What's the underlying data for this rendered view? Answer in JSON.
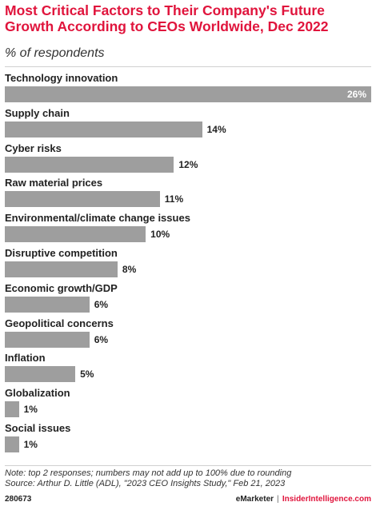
{
  "header": {
    "title": "Most Critical Factors to Their Company's Future Growth According to CEOs Worldwide, Dec 2022",
    "subtitle": "% of respondents"
  },
  "chart_data": {
    "type": "bar",
    "orientation": "horizontal",
    "title": "Most Critical Factors to Their Company's Future Growth According to CEOs Worldwide, Dec 2022",
    "subtitle": "% of respondents",
    "categories": [
      "Technology innovation",
      "Supply chain",
      "Cyber risks",
      "Raw material prices",
      "Environmental/climate change issues",
      "Disruptive competition",
      "Economic growth/GDP",
      "Geopolitical concerns",
      "Inflation",
      "Globalization",
      "Social issues"
    ],
    "values": [
      26,
      14,
      12,
      11,
      10,
      8,
      6,
      6,
      5,
      1,
      1
    ],
    "value_labels": [
      "26%",
      "14%",
      "12%",
      "11%",
      "10%",
      "8%",
      "6%",
      "6%",
      "5%",
      "1%",
      "1%"
    ],
    "unit": "%",
    "xlim": [
      0,
      26
    ],
    "grid": false,
    "legend": "none",
    "bar_color": "#9e9e9e"
  },
  "footnotes": {
    "note": "Note: top 2 responses; numbers may not add up to 100% due to rounding",
    "source": "Source: Arthur D. Little (ADL), \"2023 CEO Insights Study,\" Feb 21, 2023"
  },
  "footer": {
    "chart_id": "280673",
    "brand_left": "eMarketer",
    "separator": "|",
    "brand_right": "InsiderIntelligence.com"
  },
  "colors": {
    "title": "#e0143c",
    "bar": "#9e9e9e",
    "brand": "#e0143c"
  }
}
